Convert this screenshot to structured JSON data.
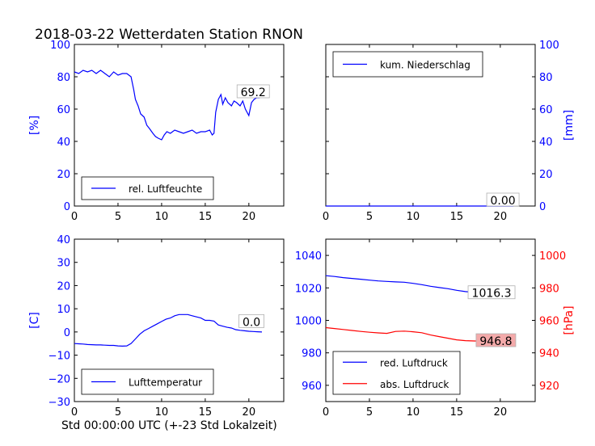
{
  "figure": {
    "title": "2018-03-22 Wetterdaten Station RNON",
    "xlabel": "Std 00:00:00 UTC (+-23 Std Lokalzeit)"
  },
  "chart_data": [
    {
      "id": "humidity",
      "type": "line",
      "ylabel": "[%]",
      "ylabel_color": "#0000ff",
      "xlim": [
        0,
        24
      ],
      "ylim": [
        0,
        100
      ],
      "xticks": [
        "0",
        "5",
        "10",
        "15",
        "20"
      ],
      "yticks": [
        "0",
        "20",
        "40",
        "60",
        "80",
        "100"
      ],
      "ytick_color": "#0000ff",
      "legend": "lower-left",
      "annotation": {
        "text": "69.2",
        "x": 20.5,
        "y": 70,
        "bg": "#ffffff"
      },
      "series": [
        {
          "name": "rel. Luftfeuchte",
          "color": "#0000ff",
          "x": [
            0,
            0.5,
            1,
            1.5,
            2,
            2.5,
            3,
            3.5,
            4,
            4.5,
            5,
            5.5,
            6,
            6.5,
            6.8,
            7,
            7.3,
            7.6,
            8,
            8.3,
            8.6,
            9,
            9.3,
            9.6,
            10,
            10.3,
            10.6,
            11,
            11.5,
            12,
            12.5,
            13,
            13.5,
            14,
            14.5,
            15,
            15.5,
            15.8,
            16,
            16.2,
            16.5,
            16.8,
            17,
            17.3,
            17.6,
            18,
            18.3,
            18.6,
            19,
            19.3,
            19.6,
            20,
            20.3,
            20.6,
            20.9,
            21.2,
            21.5
          ],
          "y": [
            83,
            82,
            84,
            83,
            84,
            82,
            84,
            82,
            80,
            83,
            81,
            82,
            82,
            80,
            72,
            66,
            62,
            57,
            55,
            50,
            48,
            45,
            43,
            42,
            41,
            44,
            46,
            45,
            47,
            46,
            45,
            46,
            47,
            45,
            46,
            46,
            47,
            44,
            45,
            58,
            66,
            69,
            63,
            67,
            64,
            62,
            65,
            64,
            62,
            65,
            60,
            56,
            64,
            66,
            67,
            67,
            69
          ]
        }
      ]
    },
    {
      "id": "precipitation",
      "type": "line",
      "ylabel": "[mm]",
      "ylabel_color": "#0000ff",
      "ylabel_side": "right",
      "xlim": [
        0,
        24
      ],
      "ylim": [
        0,
        100
      ],
      "xticks": [
        "0",
        "5",
        "10",
        "15",
        "20"
      ],
      "yticks": [
        "0",
        "20",
        "40",
        "60",
        "80",
        "100"
      ],
      "ytick_color": "#0000ff",
      "legend": "upper-left",
      "annotation": {
        "text": "0.00",
        "x": 20.3,
        "y": 3,
        "bg": "#ffffff"
      },
      "series": [
        {
          "name": "kum. Niederschlag",
          "color": "#0000ff",
          "x": [
            0,
            21.5
          ],
          "y": [
            0,
            0
          ]
        }
      ]
    },
    {
      "id": "temperature",
      "type": "line",
      "ylabel": "[C]",
      "ylabel_color": "#0000ff",
      "xlim": [
        0,
        24
      ],
      "ylim": [
        -30,
        40
      ],
      "xticks": [
        "0",
        "5",
        "10",
        "15",
        "20"
      ],
      "yticks": [
        "−30",
        "−20",
        "−10",
        "0",
        "10",
        "20",
        "30",
        "40"
      ],
      "ytick_values": [
        -30,
        -20,
        -10,
        0,
        10,
        20,
        30,
        40
      ],
      "ytick_color": "#0000ff",
      "legend": "lower-left",
      "annotation": {
        "text": "0.0",
        "x": 20.3,
        "y": 4,
        "bg": "#ffffff"
      },
      "series": [
        {
          "name": "Lufttemperatur",
          "color": "#0000ff",
          "x": [
            0,
            0.5,
            1,
            1.5,
            2,
            2.5,
            3,
            3.5,
            4,
            4.5,
            5,
            5.5,
            6,
            6.5,
            7,
            7.5,
            8,
            8.5,
            9,
            9.5,
            10,
            10.5,
            11,
            11.5,
            12,
            12.5,
            13,
            13.5,
            14,
            14.5,
            15,
            15.5,
            16,
            16.5,
            17,
            17.5,
            18,
            18.5,
            19,
            19.5,
            20,
            20.5,
            21,
            21.5
          ],
          "y": [
            -5,
            -5.1,
            -5.2,
            -5.4,
            -5.5,
            -5.6,
            -5.6,
            -5.7,
            -5.8,
            -5.8,
            -6,
            -6.1,
            -6,
            -5,
            -3,
            -1,
            0.5,
            1.5,
            2.5,
            3.5,
            4.5,
            5.5,
            6,
            7,
            7.5,
            7.5,
            7.5,
            7,
            6.5,
            6,
            5,
            5,
            4.7,
            3,
            2.5,
            2,
            1.7,
            1,
            0.7,
            0.5,
            0.3,
            0.2,
            0.1,
            0
          ]
        }
      ]
    },
    {
      "id": "pressure",
      "type": "line",
      "ylabel": "[hPa]",
      "ylabel_color": "#ff0000",
      "ylabel_side": "right",
      "xlim": [
        0,
        24
      ],
      "ylim": [
        950,
        1050
      ],
      "ylim_right": [
        910,
        1010
      ],
      "xticks": [
        "0",
        "5",
        "10",
        "15",
        "20"
      ],
      "yticks": [
        "960",
        "980",
        "1000",
        "1020",
        "1040"
      ],
      "ytick_values": [
        960,
        980,
        1000,
        1020,
        1040
      ],
      "ytick_color": "#0000ff",
      "yticks_right": [
        "920",
        "940",
        "960",
        "980",
        "1000"
      ],
      "ytick_right_values": [
        920,
        940,
        960,
        980,
        1000
      ],
      "ytick_right_color": "#ff0000",
      "legend": "lower-left",
      "annotations": [
        {
          "text": "1016.3",
          "x": 19,
          "y": 1016.3,
          "bg": "#ffffff",
          "axis": "left"
        },
        {
          "text": "946.8",
          "x": 19.5,
          "y": 946.8,
          "bg": "#f4aaaa",
          "axis": "right"
        }
      ],
      "series": [
        {
          "name": "red. Luftdruck",
          "color": "#0000ff",
          "axis": "left",
          "x": [
            0,
            1,
            2,
            3,
            4,
            5,
            6,
            7,
            8,
            9,
            10,
            11,
            12,
            13,
            14,
            15,
            16,
            17,
            18,
            19,
            20,
            21,
            21.5
          ],
          "y": [
            1027.5,
            1027,
            1026.3,
            1025.8,
            1025.3,
            1024.8,
            1024.3,
            1024,
            1023.7,
            1023.5,
            1022.8,
            1022,
            1021,
            1020.2,
            1019.5,
            1018.5,
            1017.7,
            1017.2,
            1017,
            1016.8,
            1016.5,
            1016.4,
            1016.3
          ]
        },
        {
          "name": "abs. Luftdruck",
          "color": "#ff0000",
          "axis": "right",
          "x": [
            0,
            1,
            2,
            3,
            4,
            5,
            6,
            7,
            8,
            9,
            10,
            11,
            12,
            13,
            14,
            15,
            16,
            17,
            18,
            19,
            20,
            21,
            21.5
          ],
          "y": [
            955.5,
            955,
            954.4,
            953.8,
            953.2,
            952.7,
            952.3,
            952,
            953.2,
            953.4,
            953,
            952.4,
            951,
            950,
            949,
            948,
            947.5,
            947.3,
            947.2,
            947,
            946.9,
            946.8,
            946.8
          ]
        }
      ]
    }
  ]
}
